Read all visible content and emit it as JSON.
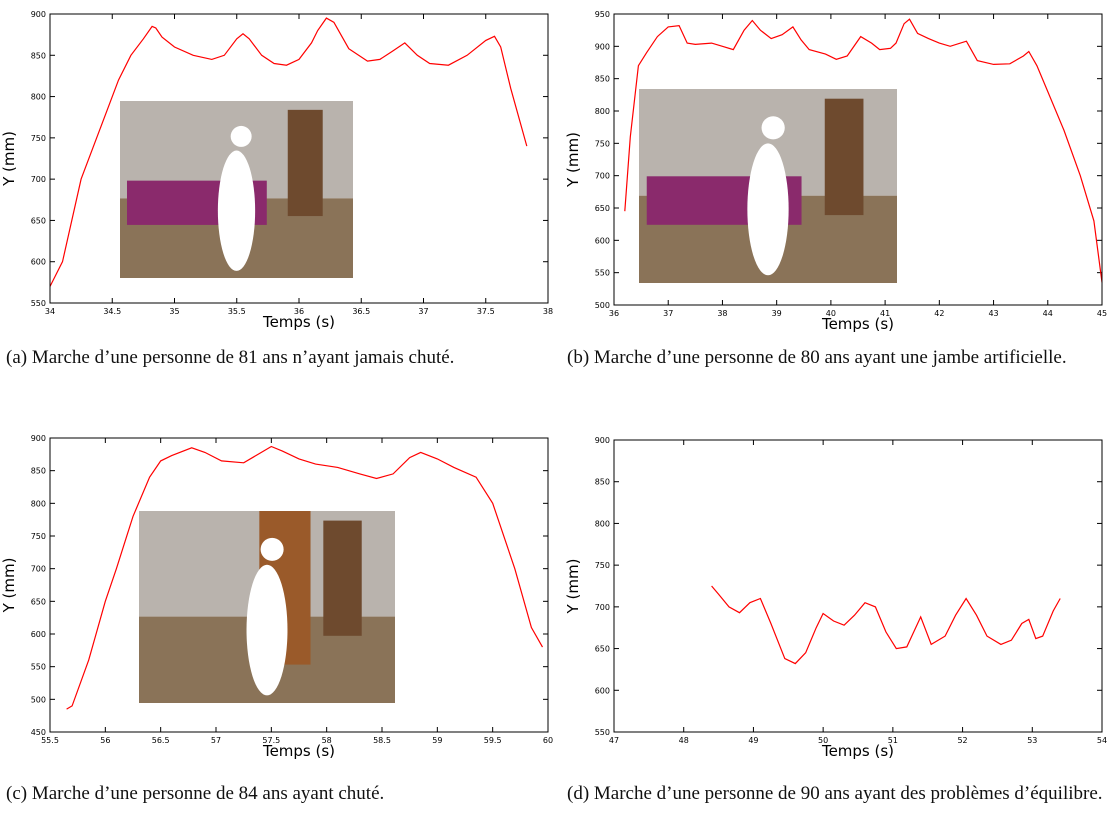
{
  "chart_data": [
    {
      "type": "line",
      "caption": "(a) Marche d’une personne de 81 ans n’ayant jamais chuté.",
      "x_label": "Temps (s)",
      "y_label": "Y (mm)",
      "xlim": [
        34,
        38
      ],
      "xticks": [
        34,
        34.5,
        35,
        35.5,
        36,
        36.5,
        37,
        37.5,
        38
      ],
      "ylim": [
        550,
        900
      ],
      "yticks": [
        550,
        600,
        650,
        700,
        750,
        800,
        850,
        900
      ],
      "color": "#ff0000",
      "x": [
        34.0,
        34.1,
        34.25,
        34.4,
        34.55,
        34.65,
        34.75,
        34.82,
        34.85,
        34.9,
        35.0,
        35.15,
        35.3,
        35.4,
        35.5,
        35.55,
        35.6,
        35.7,
        35.8,
        35.9,
        36.0,
        36.1,
        36.15,
        36.22,
        36.28,
        36.4,
        36.55,
        36.65,
        36.75,
        36.85,
        36.95,
        37.05,
        37.2,
        37.35,
        37.5,
        37.57,
        37.62,
        37.7,
        37.83
      ],
      "values": [
        570,
        600,
        700,
        760,
        820,
        850,
        870,
        885,
        883,
        872,
        860,
        850,
        845,
        850,
        870,
        876,
        870,
        850,
        840,
        838,
        845,
        865,
        880,
        895,
        890,
        858,
        843,
        845,
        855,
        865,
        850,
        840,
        838,
        850,
        868,
        873,
        860,
        810,
        740
      ]
    },
    {
      "type": "line",
      "caption": "(b) Marche d’une personne de 80 ans ayant une jambe artificielle.",
      "x_label": "Temps (s)",
      "y_label": "Y (mm)",
      "xlim": [
        36,
        45
      ],
      "xticks": [
        36,
        37,
        38,
        39,
        40,
        41,
        42,
        43,
        44,
        45
      ],
      "ylim": [
        500,
        950
      ],
      "yticks": [
        500,
        550,
        600,
        650,
        700,
        750,
        800,
        850,
        900,
        950
      ],
      "color": "#ff0000",
      "x": [
        36.2,
        36.3,
        36.45,
        36.6,
        36.8,
        37.0,
        37.2,
        37.35,
        37.5,
        37.8,
        38.0,
        38.2,
        38.4,
        38.55,
        38.7,
        38.9,
        39.1,
        39.3,
        39.45,
        39.6,
        39.9,
        40.1,
        40.3,
        40.55,
        40.75,
        40.9,
        41.1,
        41.2,
        41.35,
        41.45,
        41.6,
        41.8,
        42.0,
        42.2,
        42.5,
        42.7,
        43.0,
        43.3,
        43.55,
        43.65,
        43.8,
        44.0,
        44.3,
        44.6,
        44.85,
        45.0
      ],
      "values": [
        645,
        760,
        870,
        890,
        915,
        930,
        932,
        905,
        903,
        905,
        900,
        895,
        925,
        940,
        925,
        912,
        918,
        930,
        910,
        895,
        888,
        880,
        885,
        915,
        905,
        895,
        897,
        905,
        935,
        942,
        920,
        912,
        905,
        900,
        908,
        878,
        872,
        873,
        885,
        892,
        870,
        830,
        770,
        700,
        630,
        535
      ]
    },
    {
      "type": "line",
      "caption": "(c) Marche d’une personne de 84 ans ayant chuté.",
      "x_label": "Temps (s)",
      "y_label": "Y (mm)",
      "xlim": [
        55.5,
        60
      ],
      "xticks": [
        55.5,
        56,
        56.5,
        57,
        57.5,
        58,
        58.5,
        59,
        59.5,
        60
      ],
      "ylim": [
        450,
        900
      ],
      "yticks": [
        450,
        500,
        550,
        600,
        650,
        700,
        750,
        800,
        850,
        900
      ],
      "color": "#ff0000",
      "x": [
        55.65,
        55.7,
        55.85,
        56.0,
        56.1,
        56.25,
        56.4,
        56.5,
        56.6,
        56.78,
        56.9,
        57.05,
        57.25,
        57.4,
        57.5,
        57.6,
        57.75,
        57.9,
        58.1,
        58.3,
        58.45,
        58.6,
        58.75,
        58.85,
        59.0,
        59.15,
        59.35,
        59.5,
        59.7,
        59.85,
        59.95
      ],
      "values": [
        485,
        490,
        560,
        650,
        700,
        780,
        840,
        865,
        873,
        885,
        878,
        865,
        862,
        877,
        887,
        880,
        868,
        860,
        855,
        845,
        838,
        845,
        870,
        878,
        868,
        855,
        840,
        800,
        700,
        610,
        580
      ]
    },
    {
      "type": "line",
      "caption": "(d) Marche d’une personne de 90 ans ayant des problèmes d’équilibre.",
      "x_label": "Temps (s)",
      "y_label": "Y (mm)",
      "xlim": [
        47,
        54
      ],
      "xticks": [
        47,
        48,
        49,
        50,
        51,
        52,
        53,
        54
      ],
      "ylim": [
        550,
        900
      ],
      "yticks": [
        550,
        600,
        650,
        700,
        750,
        800,
        850,
        900
      ],
      "color": "#ff0000",
      "x": [
        48.4,
        48.5,
        48.65,
        48.8,
        48.95,
        49.1,
        49.25,
        49.45,
        49.6,
        49.75,
        49.9,
        50.0,
        50.15,
        50.3,
        50.45,
        50.6,
        50.75,
        50.9,
        51.05,
        51.2,
        51.4,
        51.55,
        51.75,
        51.9,
        52.05,
        52.2,
        52.35,
        52.55,
        52.7,
        52.85,
        52.95,
        53.05,
        53.15,
        53.3,
        53.4
      ],
      "values": [
        725,
        715,
        700,
        693,
        705,
        710,
        680,
        638,
        632,
        645,
        675,
        692,
        683,
        678,
        690,
        705,
        700,
        670,
        650,
        652,
        688,
        655,
        665,
        690,
        710,
        690,
        665,
        655,
        660,
        680,
        685,
        662,
        665,
        695,
        710
      ]
    }
  ]
}
